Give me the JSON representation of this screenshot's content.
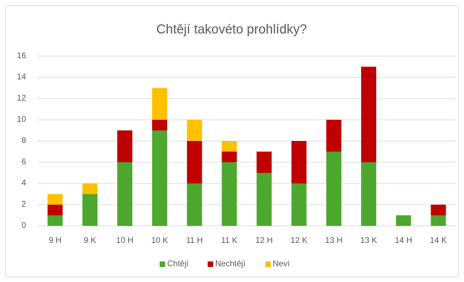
{
  "chart_data": {
    "type": "stacked_bar",
    "title": "Chtějí takovéto prohlídky?",
    "categories": [
      "9 H",
      "9 K",
      "10 H",
      "10 K",
      "11 H",
      "11 K",
      "12 H",
      "12 K",
      "13 H",
      "13 K",
      "14 H",
      "14 K"
    ],
    "series": [
      {
        "name": "Chtějí",
        "color": "#4ea72e",
        "values": [
          1,
          3,
          6,
          9,
          4,
          6,
          5,
          4,
          7,
          6,
          1,
          1
        ]
      },
      {
        "name": "Nechtějí",
        "color": "#c00000",
        "values": [
          1,
          0,
          3,
          1,
          4,
          1,
          2,
          4,
          3,
          9,
          0,
          1
        ]
      },
      {
        "name": "Neví",
        "color": "#ffc000",
        "values": [
          1,
          1,
          0,
          3,
          2,
          1,
          0,
          0,
          0,
          0,
          0,
          0
        ]
      }
    ],
    "ylim": [
      0,
      16
    ],
    "yticks": [
      0,
      2,
      4,
      6,
      8,
      10,
      12,
      14,
      16
    ],
    "grid": true,
    "legend": "bottom"
  }
}
